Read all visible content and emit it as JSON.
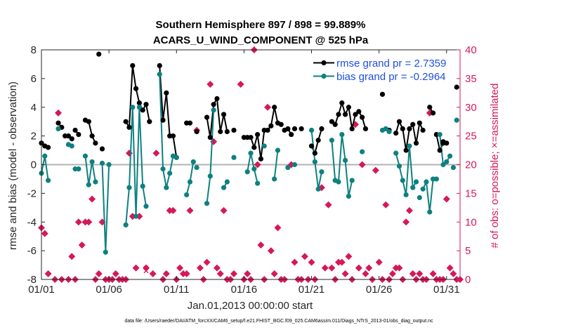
{
  "chart_data": {
    "type": "line",
    "title": "Southern Hemisphere 897 / 898 = 99.889%",
    "subtitle": "ACARS_U_WIND_COMPONENT @ 525 hPa",
    "xlabel": "Jan.01,2013 00:00:00 start",
    "ylabel": "rmse and bias (model - observation)",
    "y2label": "# of obs: o=possible; ×=assimilated",
    "xlim": [
      1,
      32
    ],
    "ylim": [
      -8,
      8
    ],
    "y2lim": [
      0,
      40
    ],
    "x_ticks": [
      1,
      6,
      11,
      16,
      21,
      26,
      31
    ],
    "x_tick_labels": [
      "01/01",
      "01/06",
      "01/11",
      "01/16",
      "01/21",
      "01/26",
      "01/31"
    ],
    "y_ticks": [
      -8,
      -6,
      -4,
      -2,
      0,
      2,
      4,
      6,
      8
    ],
    "y2_ticks": [
      0,
      5,
      10,
      15,
      20,
      25,
      30,
      35,
      40
    ],
    "colors": {
      "rmse": "#000000",
      "bias": "#0f8080",
      "obs": "#d6185a",
      "zero": "#b3b3b3",
      "legend_text": "#1f4fdf"
    },
    "legend": [
      "rmse grand pr = 2.7359",
      "bias grand pr = -0.2964"
    ],
    "footnote": "data file: /Users/raeder/DAI/ATM_forcXX/CAM6_setup/f.e21.FHIST_BGC.f09_025.CAM6assim.011/Diags_NTrS_2013-01/obs_diag_output.nc",
    "series": [
      {
        "name": "rmse",
        "segments": [
          [
            [
              1.0,
              1.5
            ],
            [
              1.25,
              1.3
            ],
            [
              1.5,
              1.2
            ]
          ],
          [
            [
              2.25,
              2.9
            ],
            [
              2.5,
              2.6
            ]
          ],
          [
            [
              3.0,
              2.0
            ],
            [
              3.25,
              1.8
            ]
          ],
          [
            [
              3.5,
              2.4
            ],
            [
              3.75,
              2.1
            ]
          ],
          [
            [
              4.25,
              3.1
            ],
            [
              4.5,
              3.0
            ],
            [
              4.75,
              2.0
            ],
            [
              5.0,
              1.5
            ]
          ],
          [
            [
              5.5,
              1.1
            ]
          ],
          [
            [
              7.25,
              3.0
            ],
            [
              7.5,
              2.6
            ],
            [
              7.75,
              6.9
            ],
            [
              8.0,
              5.3
            ],
            [
              8.25,
              4.3
            ],
            [
              8.5,
              3.8
            ],
            [
              8.75,
              4.2
            ],
            [
              9.0,
              3.0
            ]
          ],
          [
            [
              9.75,
              6.9
            ],
            [
              10.0,
              3.1
            ],
            [
              10.25,
              5.0
            ],
            [
              10.5,
              2.0
            ],
            [
              10.75,
              2.0
            ],
            [
              11.0,
              0.5
            ]
          ],
          [
            [
              11.75,
              2.9
            ],
            [
              12.0,
              2.9
            ]
          ],
          [
            [
              13.25,
              3.3
            ],
            [
              13.5,
              1.9
            ],
            [
              13.75,
              4.2
            ],
            [
              14.0,
              4.6
            ],
            [
              14.25,
              2.3
            ],
            [
              14.5,
              3.5
            ],
            [
              14.75,
              2.3
            ]
          ],
          [
            [
              16.25,
              1.9
            ],
            [
              16.5,
              1.9
            ],
            [
              16.75,
              1.2
            ],
            [
              17.0,
              2.1
            ],
            [
              17.25,
              0.4
            ],
            [
              17.5,
              2.4
            ],
            [
              17.75,
              2.4
            ],
            [
              18.0,
              2.7
            ],
            [
              18.25,
              4.0
            ],
            [
              18.5,
              2.9
            ],
            [
              18.75,
              2.8
            ]
          ],
          [
            [
              19.25,
              2.5
            ],
            [
              19.5,
              2.1
            ]
          ],
          [
            [
              21.0,
              1.3
            ],
            [
              21.25,
              0.8
            ],
            [
              21.5,
              1.7
            ],
            [
              21.75,
              2.5
            ]
          ],
          [
            [
              22.5,
              3.0
            ],
            [
              22.75,
              2.8
            ],
            [
              23.0,
              3.5
            ],
            [
              23.25,
              4.3
            ],
            [
              23.5,
              3.5
            ],
            [
              23.75,
              4.0
            ],
            [
              24.0,
              2.5
            ],
            [
              24.25,
              3.5
            ],
            [
              24.5,
              3.7
            ],
            [
              24.75,
              3.3
            ],
            [
              25.0,
              2.5
            ]
          ],
          [
            [
              27.25,
              2.2
            ],
            [
              27.5,
              3.0
            ],
            [
              27.75,
              2.5
            ],
            [
              28.0,
              1.0
            ],
            [
              28.25,
              2.5
            ],
            [
              28.5,
              2.8
            ],
            [
              28.75,
              1.5
            ],
            [
              29.0,
              2.9
            ],
            [
              29.25,
              2.4
            ]
          ],
          [
            [
              29.75,
              4.0
            ],
            [
              30.0,
              3.6
            ]
          ],
          [
            [
              30.25,
              2.1
            ],
            [
              30.5,
              1.0
            ],
            [
              30.75,
              1.5
            ],
            [
              31.0,
              1.5
            ]
          ],
          [
            [
              31.75,
              5.4
            ]
          ]
        ],
        "isolated": [
          [
            2.75,
            2.0
          ],
          [
            5.25,
            7.7
          ],
          [
            12.5,
            2.3
          ],
          [
            15.25,
            2.4
          ],
          [
            16.0,
            1.9
          ],
          [
            19.0,
            2.4
          ],
          [
            19.75,
            2.5
          ],
          [
            20.25,
            2.5
          ],
          [
            26.25,
            4.9
          ],
          [
            26.75,
            2.4
          ],
          [
            30.75,
            1.6
          ]
        ]
      },
      {
        "name": "bias",
        "segments": [
          [
            [
              1.0,
              -0.6
            ],
            [
              1.25,
              0.6
            ],
            [
              1.5,
              -1.1
            ]
          ],
          [
            [
              2.25,
              2.5
            ]
          ],
          [
            [
              3.0,
              1.4
            ],
            [
              3.25,
              1.3
            ]
          ],
          [
            [
              3.5,
              -0.3
            ]
          ],
          [
            [
              4.25,
              0.6
            ],
            [
              4.5,
              -1.4
            ],
            [
              4.75,
              0.2
            ],
            [
              5.0,
              -1.2
            ]
          ],
          [
            [
              5.5,
              0.1
            ],
            [
              5.75,
              -6.1
            ],
            [
              6.0,
              0.0
            ]
          ],
          [
            [
              7.25,
              -4.2
            ],
            [
              7.5,
              -1.6
            ],
            [
              7.75,
              4.0
            ],
            [
              8.0,
              -3.6
            ],
            [
              8.25,
              4.0
            ],
            [
              8.5,
              -1.5
            ],
            [
              8.75,
              -2.9
            ]
          ],
          [
            [
              9.75,
              6.3
            ],
            [
              10.0,
              -0.3
            ],
            [
              10.25,
              -1.6
            ],
            [
              10.5,
              -0.6
            ],
            [
              10.75,
              0.6
            ],
            [
              11.0,
              0.5
            ]
          ],
          [
            [
              11.75,
              -2.1
            ],
            [
              12.0,
              -1.2
            ],
            [
              12.25,
              0.2
            ]
          ],
          [
            [
              13.25,
              -2.7
            ],
            [
              13.5,
              -0.8
            ],
            [
              13.75,
              3.8
            ]
          ],
          [
            [
              14.5,
              -1.6
            ],
            [
              14.75,
              -1.2
            ]
          ],
          [
            [
              16.25,
              -0.5
            ],
            [
              16.5,
              0.8
            ],
            [
              16.75,
              -0.3
            ],
            [
              17.0,
              -1.3
            ]
          ],
          [
            [
              18.25,
              -1.0
            ],
            [
              18.5,
              1.0
            ]
          ],
          [
            [
              19.25,
              -0.2
            ]
          ],
          [
            [
              21.0,
              2.4
            ],
            [
              21.25,
              0.2
            ],
            [
              21.5,
              -1.7
            ],
            [
              21.75,
              -0.5
            ]
          ],
          [
            [
              22.5,
              1.7
            ],
            [
              22.75,
              -1.1
            ],
            [
              23.0,
              -1.2
            ],
            [
              23.25,
              2.1
            ],
            [
              23.5,
              0.3
            ],
            [
              23.75,
              -2.2
            ],
            [
              24.0,
              -1.1
            ]
          ],
          [
            [
              24.75,
              0.9
            ]
          ],
          [
            [
              26.25,
              2.4
            ]
          ],
          [
            [
              27.25,
              0.8
            ],
            [
              27.5,
              -0.1
            ],
            [
              27.75,
              -1.1
            ],
            [
              28.0,
              -2.1
            ],
            [
              28.25,
              1.3
            ],
            [
              28.5,
              -1.6
            ],
            [
              28.75,
              -1.2
            ]
          ],
          [
            [
              29.25,
              -1.7
            ],
            [
              29.5,
              -1.2
            ],
            [
              29.75,
              -3.3
            ],
            [
              30.0,
              -1.0
            ],
            [
              30.25,
              -1.0
            ]
          ],
          [
            [
              30.5,
              2.1
            ],
            [
              30.75,
              0.0
            ]
          ],
          [
            [
              31.0,
              0.2
            ],
            [
              31.25,
              0.6
            ]
          ],
          [
            [
              31.75,
              3.1
            ]
          ]
        ],
        "isolated": [
          [
            3.75,
            -0.3
          ],
          [
            12.5,
            -0.2
          ],
          [
            15.25,
            0.5
          ],
          [
            17.5,
            1.3
          ],
          [
            19.75,
            0.0
          ],
          [
            26.5,
            2.5
          ],
          [
            26.75,
            2.3
          ],
          [
            29.0,
            -2.3
          ],
          [
            31.5,
            -0.2
          ]
        ]
      }
    ],
    "obs_possible": [
      [
        1.0,
        9
      ],
      [
        1.25,
        8
      ],
      [
        1.5,
        1
      ],
      [
        2.0,
        0
      ],
      [
        2.25,
        29
      ],
      [
        2.5,
        0
      ],
      [
        3.0,
        0
      ],
      [
        3.25,
        4
      ],
      [
        3.5,
        0
      ],
      [
        3.75,
        10
      ],
      [
        4.0,
        6
      ],
      [
        4.25,
        10
      ],
      [
        4.5,
        10
      ],
      [
        4.75,
        14
      ],
      [
        5.0,
        0
      ],
      [
        5.25,
        1
      ],
      [
        5.5,
        10
      ],
      [
        5.75,
        0
      ],
      [
        6.0,
        0
      ],
      [
        6.25,
        0
      ],
      [
        6.5,
        1
      ],
      [
        6.75,
        0
      ],
      [
        7.0,
        0
      ],
      [
        7.25,
        0
      ],
      [
        7.5,
        22
      ],
      [
        7.75,
        11
      ],
      [
        8.0,
        2
      ],
      [
        8.25,
        11
      ],
      [
        8.75,
        2
      ],
      [
        9.25,
        1
      ],
      [
        9.5,
        22
      ],
      [
        10.0,
        0
      ],
      [
        10.25,
        1
      ],
      [
        10.5,
        12
      ],
      [
        10.75,
        12
      ],
      [
        11.0,
        0
      ],
      [
        11.25,
        2
      ],
      [
        11.5,
        1
      ],
      [
        11.75,
        1
      ],
      [
        12.0,
        12
      ],
      [
        12.5,
        26
      ],
      [
        12.75,
        2
      ],
      [
        13.0,
        0
      ],
      [
        13.25,
        3
      ],
      [
        13.5,
        34
      ],
      [
        13.75,
        24
      ],
      [
        14.0,
        2
      ],
      [
        14.25,
        1
      ],
      [
        14.5,
        12
      ],
      [
        14.75,
        0
      ],
      [
        15.0,
        0
      ],
      [
        15.25,
        1
      ],
      [
        15.75,
        34
      ],
      [
        16.0,
        0
      ],
      [
        16.25,
        1
      ],
      [
        16.5,
        0
      ],
      [
        16.75,
        40
      ],
      [
        17.0,
        20
      ],
      [
        17.25,
        6
      ],
      [
        17.5,
        0
      ],
      [
        17.75,
        30
      ],
      [
        18.0,
        5
      ],
      [
        18.25,
        1
      ],
      [
        18.5,
        9
      ],
      [
        18.75,
        0
      ],
      [
        19.0,
        0
      ],
      [
        19.5,
        20
      ],
      [
        19.75,
        3
      ],
      [
        20.0,
        0
      ],
      [
        20.25,
        0
      ],
      [
        20.5,
        4
      ],
      [
        20.75,
        0
      ],
      [
        21.0,
        3
      ],
      [
        21.25,
        0
      ],
      [
        21.75,
        16
      ],
      [
        22.0,
        2
      ],
      [
        22.25,
        13
      ],
      [
        22.5,
        2
      ],
      [
        22.75,
        0
      ],
      [
        23.0,
        3
      ],
      [
        23.25,
        3
      ],
      [
        23.5,
        1
      ],
      [
        23.75,
        4
      ],
      [
        24.0,
        0
      ],
      [
        24.25,
        27
      ],
      [
        24.5,
        2
      ],
      [
        24.75,
        20
      ],
      [
        25.0,
        1
      ],
      [
        25.25,
        2
      ],
      [
        25.5,
        0
      ],
      [
        25.75,
        19
      ],
      [
        26.0,
        3
      ],
      [
        26.25,
        0
      ],
      [
        26.5,
        13
      ],
      [
        26.75,
        0
      ],
      [
        27.0,
        1
      ],
      [
        27.25,
        2
      ],
      [
        27.5,
        2
      ],
      [
        27.75,
        0
      ],
      [
        28.0,
        10
      ],
      [
        28.25,
        12
      ],
      [
        28.5,
        1
      ],
      [
        28.75,
        0
      ],
      [
        29.0,
        1
      ],
      [
        29.25,
        0
      ],
      [
        29.5,
        0
      ],
      [
        29.75,
        29
      ],
      [
        30.0,
        1
      ],
      [
        30.25,
        0
      ],
      [
        30.5,
        0
      ],
      [
        30.75,
        0
      ],
      [
        31.0,
        14
      ],
      [
        31.25,
        2
      ],
      [
        31.5,
        1
      ],
      [
        31.75,
        0
      ],
      [
        32.0,
        0
      ]
    ],
    "obs_assim_extra": [
      [
        8.75,
        1.5
      ]
    ],
    "obs_possible_open": [
      [
        8.75,
        2
      ]
    ]
  }
}
